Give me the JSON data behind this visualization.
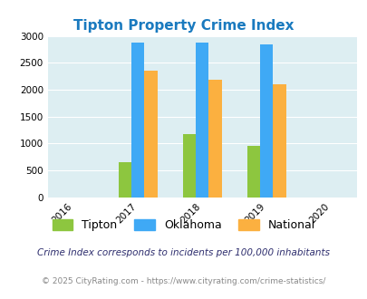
{
  "title": "Tipton Property Crime Index",
  "title_color": "#1a7abf",
  "years": [
    2017,
    2018,
    2019
  ],
  "x_ticks": [
    2016,
    2017,
    2018,
    2019,
    2020
  ],
  "tipton": [
    650,
    1170,
    950
  ],
  "oklahoma": [
    2870,
    2870,
    2840
  ],
  "national": [
    2360,
    2190,
    2100
  ],
  "bar_colors": [
    "#8dc63f",
    "#3fa9f5",
    "#fbb040"
  ],
  "legend_labels": [
    "Tipton",
    "Oklahoma",
    "National"
  ],
  "ylim": [
    0,
    3000
  ],
  "yticks": [
    0,
    500,
    1000,
    1500,
    2000,
    2500,
    3000
  ],
  "bg_color": "#ddeef2",
  "subtitle": "Crime Index corresponds to incidents per 100,000 inhabitants",
  "footer": "© 2025 CityRating.com - https://www.cityrating.com/crime-statistics/",
  "subtitle_color": "#2e2e6e",
  "footer_color": "#888888"
}
